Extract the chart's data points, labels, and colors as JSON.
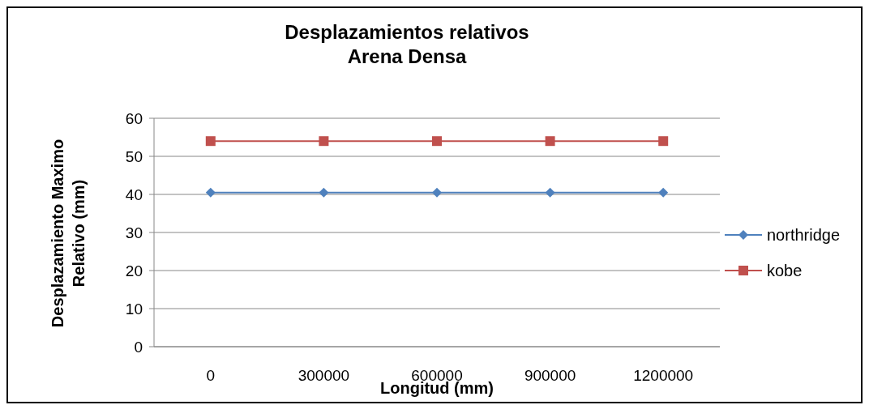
{
  "chart_data": {
    "type": "line",
    "title": "Desplazamientos relativos\nArena Densa",
    "xlabel": "Longitud (mm)",
    "ylabel": "Desplazamiento Maximo\nRelativo (mm)",
    "categories": [
      "0",
      "300000",
      "600000",
      "900000",
      "1200000"
    ],
    "series": [
      {
        "name": "northridge",
        "color": "#4f81bd",
        "marker": "diamond",
        "values": [
          40.5,
          40.5,
          40.5,
          40.5,
          40.5
        ]
      },
      {
        "name": "kobe",
        "color": "#c0504d",
        "marker": "square",
        "values": [
          54,
          54,
          54,
          54,
          54
        ]
      }
    ],
    "ylim": [
      0,
      60
    ],
    "yticks": [
      0,
      10,
      20,
      30,
      40,
      50,
      60
    ],
    "grid": "y",
    "legend": "right"
  }
}
